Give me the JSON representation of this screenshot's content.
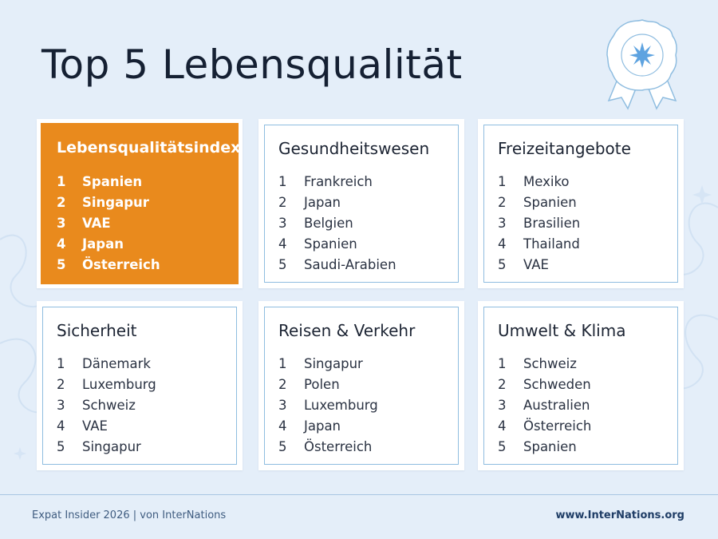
{
  "page": {
    "title": "Top 5 Lebensqualität"
  },
  "colors": {
    "background": "#e4eef9",
    "highlight": "#e98a1d",
    "border": "#8fbde0",
    "text": "#1c2433"
  },
  "badge": {
    "icon": "rosette-award-icon"
  },
  "categories": [
    {
      "title": "Lebensqualitätsindex",
      "highlighted": true,
      "items": [
        {
          "rank": "1",
          "country": "Spanien"
        },
        {
          "rank": "2",
          "country": "Singapur"
        },
        {
          "rank": "3",
          "country": "VAE"
        },
        {
          "rank": "4",
          "country": "Japan"
        },
        {
          "rank": "5",
          "country": "Österreich"
        }
      ]
    },
    {
      "title": "Gesundheitswesen",
      "highlighted": false,
      "items": [
        {
          "rank": "1",
          "country": "Frankreich"
        },
        {
          "rank": "2",
          "country": "Japan"
        },
        {
          "rank": "3",
          "country": "Belgien"
        },
        {
          "rank": "4",
          "country": "Spanien"
        },
        {
          "rank": "5",
          "country": "Saudi-Arabien"
        }
      ]
    },
    {
      "title": "Freizeitangebote",
      "highlighted": false,
      "items": [
        {
          "rank": "1",
          "country": "Mexiko"
        },
        {
          "rank": "2",
          "country": "Spanien"
        },
        {
          "rank": "3",
          "country": "Brasilien"
        },
        {
          "rank": "4",
          "country": "Thailand"
        },
        {
          "rank": "5",
          "country": "VAE"
        }
      ]
    },
    {
      "title": "Sicherheit",
      "highlighted": false,
      "items": [
        {
          "rank": "1",
          "country": "Dänemark"
        },
        {
          "rank": "2",
          "country": "Luxemburg"
        },
        {
          "rank": "3",
          "country": "Schweiz"
        },
        {
          "rank": "4",
          "country": "VAE"
        },
        {
          "rank": "5",
          "country": "Singapur"
        }
      ]
    },
    {
      "title": "Reisen & Verkehr",
      "highlighted": false,
      "items": [
        {
          "rank": "1",
          "country": "Singapur"
        },
        {
          "rank": "2",
          "country": "Polen"
        },
        {
          "rank": "3",
          "country": "Luxemburg"
        },
        {
          "rank": "4",
          "country": "Japan"
        },
        {
          "rank": "5",
          "country": "Österreich"
        }
      ]
    },
    {
      "title": "Umwelt & Klima",
      "highlighted": false,
      "items": [
        {
          "rank": "1",
          "country": "Schweiz"
        },
        {
          "rank": "2",
          "country": "Schweden"
        },
        {
          "rank": "3",
          "country": "Australien"
        },
        {
          "rank": "4",
          "country": "Österreich"
        },
        {
          "rank": "5",
          "country": "Spanien"
        }
      ]
    }
  ],
  "footer": {
    "source": "Expat Insider 2026  |  von InterNations",
    "url": "www.InterNations.org"
  }
}
